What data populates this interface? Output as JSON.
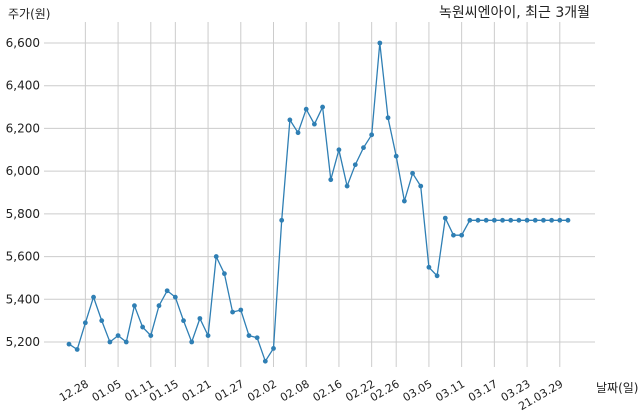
{
  "chart_data": {
    "type": "line",
    "title": "녹원씨엔아이, 최근 3개월",
    "ylabel": "주가(원)",
    "xlabel": "날짜(일)",
    "ylim": [
      5060,
      6700
    ],
    "yticks": [
      5200,
      5400,
      5600,
      5800,
      6000,
      6200,
      6400,
      6600
    ],
    "ytick_labels": [
      "5,200",
      "5,400",
      "5,600",
      "5,800",
      "6,000",
      "6,200",
      "6,400",
      "6,600"
    ],
    "xtick_labels": [
      "12.28",
      "01.05",
      "01.11",
      "01.15",
      "01.21",
      "01.27",
      "02.02",
      "02.08",
      "02.16",
      "02.22",
      "02.26",
      "03.05",
      "03.11",
      "03.17",
      "03.23",
      "21.03.29"
    ],
    "xtick_indices": [
      2,
      6,
      10,
      13,
      17,
      21,
      25,
      29,
      33,
      37,
      40,
      44,
      48,
      52,
      56,
      60
    ],
    "grid": true,
    "colors": {
      "line": "#2f7fb4",
      "grid": "#cccccc"
    },
    "series": [
      {
        "values": [
          5190,
          5165,
          5290,
          5410,
          5300,
          5200,
          5230,
          5200,
          5370,
          5270,
          5230,
          5370,
          5440,
          5410,
          5300,
          5200,
          5310,
          5230,
          5600,
          5520,
          5340,
          5350,
          5230,
          5220,
          5110,
          5170,
          5770,
          6240,
          6180,
          6290,
          6220,
          6300,
          5960,
          6100,
          5930,
          6030,
          6110,
          6170,
          6600,
          6250,
          6070,
          5860,
          5990,
          5930,
          5550,
          5510,
          5780,
          5700,
          5700,
          5770,
          5770,
          5770,
          5770,
          5770,
          5770,
          5770,
          5770,
          5770,
          5770,
          5770,
          5770,
          5770
        ]
      }
    ]
  }
}
